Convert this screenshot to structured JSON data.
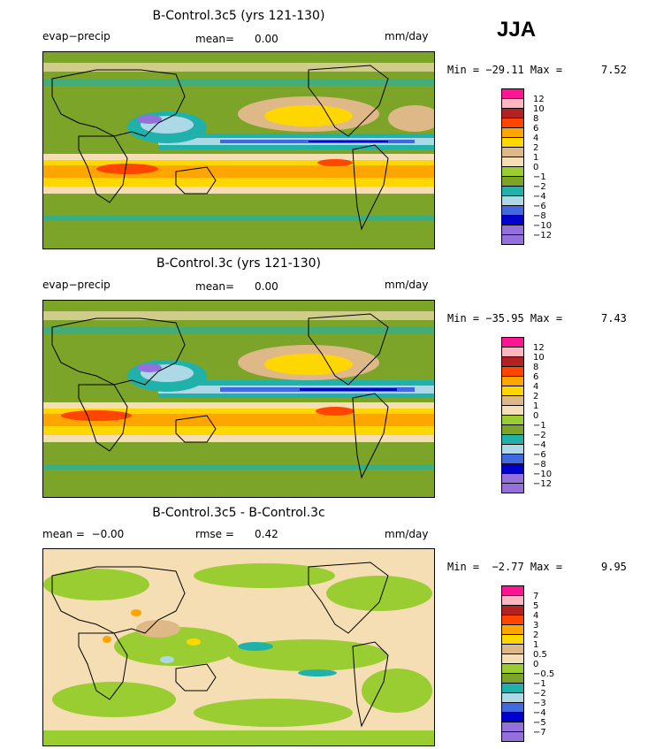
{
  "season": "JJA",
  "panels": [
    {
      "title": "B-Control.3c5 (yrs 121-130)",
      "left_label": "evap−precip",
      "mid_label": "mean=",
      "mid_value": "0.00",
      "units": "mm/day",
      "minmax": "Min = −29.11 Max =",
      "maxval": "7.52",
      "legend_labels": [
        "12",
        "10",
        "8",
        "6",
        "4",
        "2",
        "1",
        "0",
        "−1",
        "−2",
        "−4",
        "−6",
        "−8",
        "−10",
        "−12"
      ]
    },
    {
      "title": "B-Control.3c (yrs 121-130)",
      "left_label": "evap−precip",
      "mid_label": "mean=",
      "mid_value": "0.00",
      "units": "mm/day",
      "minmax": "Min = −35.95 Max =",
      "maxval": "7.43",
      "legend_labels": [
        "12",
        "10",
        "8",
        "6",
        "4",
        "2",
        "1",
        "0",
        "−1",
        "−2",
        "−4",
        "−6",
        "−8",
        "−10",
        "−12"
      ]
    },
    {
      "title": "B-Control.3c5 - B-Control.3c",
      "left_label": "mean =  −0.00",
      "mid_label": "rmse =",
      "mid_value": "0.42",
      "units": "mm/day",
      "minmax": "Min =  −2.77 Max =",
      "maxval": "9.95",
      "legend_labels": [
        "7",
        "5",
        "4",
        "3",
        "2",
        "1",
        "0.5",
        "0",
        "−0.5",
        "−1",
        "−2",
        "−3",
        "−4",
        "−5",
        "−7"
      ]
    }
  ],
  "colors": {
    "swatches": [
      "#ff1493",
      "#ffb6c1",
      "#b22222",
      "#ff4500",
      "#ffa500",
      "#ffd700",
      "#deb887",
      "#f5deb3",
      "#9acd32",
      "#7ba428",
      "#20b2aa",
      "#add8e6",
      "#4169e1",
      "#0000cd",
      "#9370db"
    ],
    "ocean_background": "#7ba428"
  }
}
